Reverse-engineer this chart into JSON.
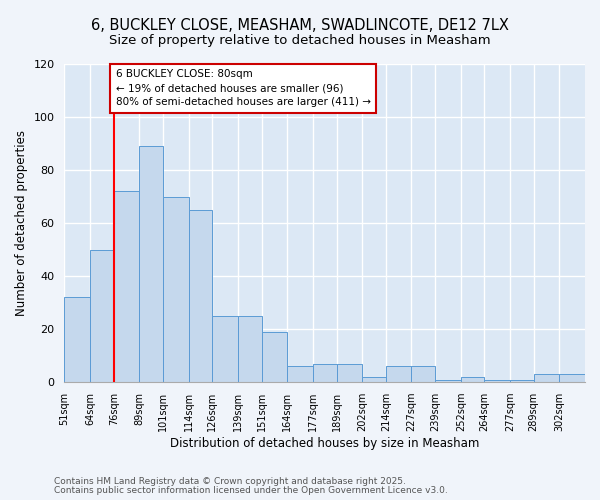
{
  "title1": "6, BUCKLEY CLOSE, MEASHAM, SWADLINCOTE, DE12 7LX",
  "title2": "Size of property relative to detached houses in Measham",
  "xlabel": "Distribution of detached houses by size in Measham",
  "ylabel": "Number of detached properties",
  "bin_labels": [
    "51sqm",
    "64sqm",
    "76sqm",
    "89sqm",
    "101sqm",
    "114sqm",
    "126sqm",
    "139sqm",
    "151sqm",
    "164sqm",
    "177sqm",
    "189sqm",
    "202sqm",
    "214sqm",
    "227sqm",
    "239sqm",
    "252sqm",
    "264sqm",
    "277sqm",
    "289sqm",
    "302sqm"
  ],
  "bin_edges": [
    51,
    64,
    76,
    89,
    101,
    114,
    126,
    139,
    151,
    164,
    177,
    189,
    202,
    214,
    227,
    239,
    252,
    264,
    277,
    289,
    302
  ],
  "bar_heights": [
    32,
    50,
    72,
    89,
    70,
    65,
    25,
    25,
    19,
    6,
    7,
    7,
    2,
    6,
    6,
    1,
    2,
    1,
    1,
    3,
    3
  ],
  "bar_color": "#c5d8ed",
  "bar_edgecolor": "#5b9bd5",
  "bg_color": "#dce8f5",
  "grid_color": "#ffffff",
  "fig_color": "#f0f4fa",
  "red_line_x": 76,
  "annotation_text": "6 BUCKLEY CLOSE: 80sqm\n← 19% of detached houses are smaller (96)\n80% of semi-detached houses are larger (411) →",
  "annotation_box_color": "#ffffff",
  "annotation_box_edgecolor": "#cc0000",
  "footer1": "Contains HM Land Registry data © Crown copyright and database right 2025.",
  "footer2": "Contains public sector information licensed under the Open Government Licence v3.0.",
  "ylim": [
    0,
    120
  ],
  "yticks": [
    0,
    20,
    40,
    60,
    80,
    100,
    120
  ],
  "title_fontsize": 10.5,
  "subtitle_fontsize": 9.5,
  "tick_fontsize": 7,
  "label_fontsize": 8.5,
  "footer_fontsize": 6.5,
  "annot_fontsize": 7.5
}
